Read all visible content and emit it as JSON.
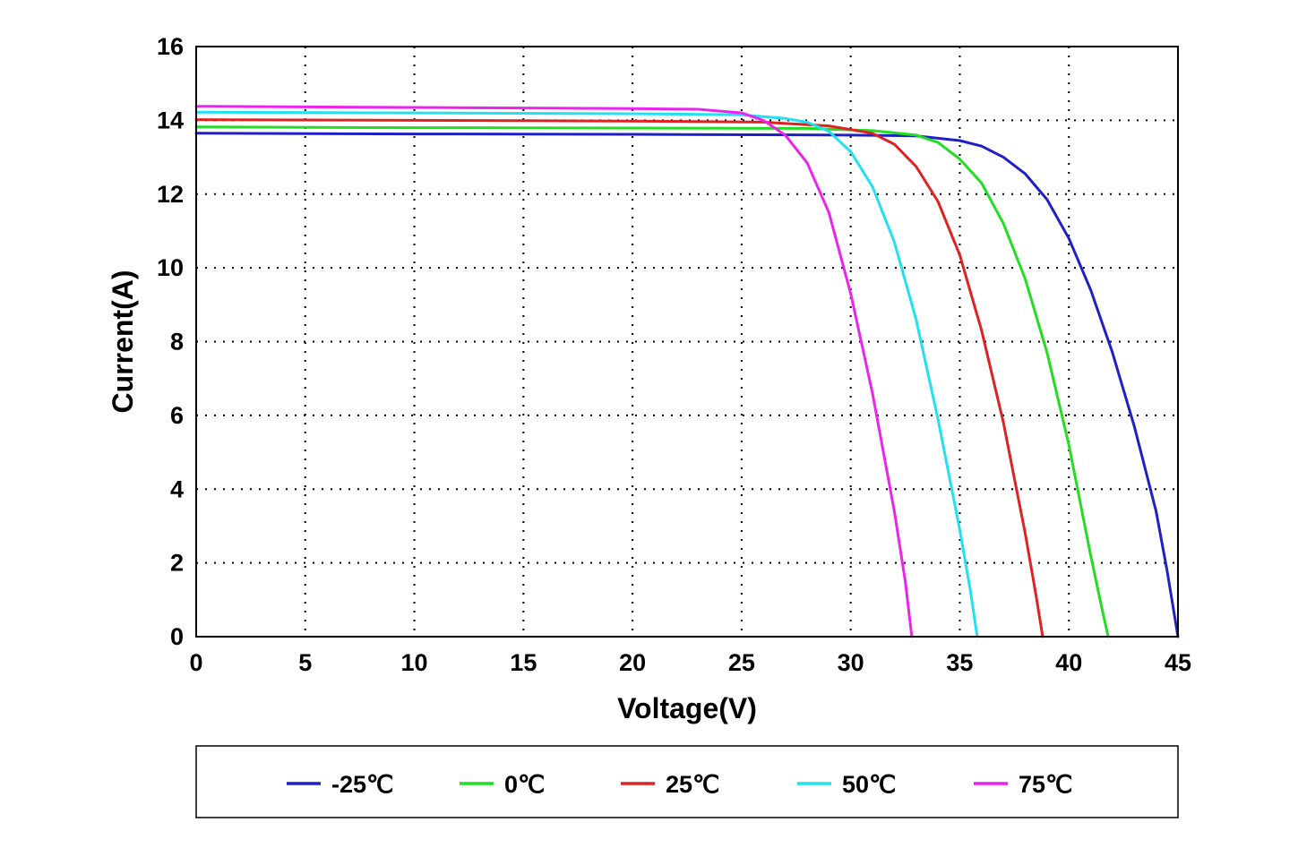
{
  "chart_data": {
    "type": "line",
    "title": "",
    "xlabel": "Voltage(V)",
    "ylabel": "Current(A)",
    "xlim": [
      0,
      45
    ],
    "ylim": [
      0,
      16
    ],
    "xticks": [
      "0",
      "5",
      "10",
      "15",
      "20",
      "25",
      "30",
      "35",
      "40",
      "45"
    ],
    "yticks": [
      "0",
      "2",
      "4",
      "6",
      "8",
      "10",
      "12",
      "14",
      "16"
    ],
    "grid": true,
    "legend_position": "bottom",
    "series": [
      {
        "name": "-25℃",
        "color": "#1f1fc8",
        "x": [
          0,
          10,
          20,
          30,
          33,
          35,
          36,
          37,
          38,
          39,
          40,
          41,
          42,
          43,
          44,
          44.5,
          45
        ],
        "y": [
          13.65,
          13.63,
          13.62,
          13.6,
          13.58,
          13.45,
          13.3,
          13.0,
          12.55,
          11.85,
          10.8,
          9.4,
          7.7,
          5.7,
          3.4,
          1.8,
          0
        ]
      },
      {
        "name": "0℃",
        "color": "#22dd22",
        "x": [
          0,
          10,
          20,
          28,
          31,
          33,
          34,
          35,
          36,
          37,
          38,
          39,
          40,
          40.5,
          41,
          41.5,
          41.8
        ],
        "y": [
          13.82,
          13.8,
          13.79,
          13.78,
          13.72,
          13.6,
          13.4,
          12.95,
          12.3,
          11.2,
          9.7,
          7.7,
          5.2,
          3.7,
          2.2,
          0.8,
          0
        ]
      },
      {
        "name": "25℃",
        "color": "#dd2222",
        "x": [
          0,
          10,
          20,
          26,
          29,
          31,
          32,
          33,
          34,
          35,
          36,
          37,
          37.5,
          38,
          38.5,
          38.8
        ],
        "y": [
          14.02,
          14.0,
          13.98,
          13.95,
          13.85,
          13.65,
          13.35,
          12.75,
          11.8,
          10.35,
          8.3,
          5.8,
          4.3,
          2.8,
          1.1,
          0
        ]
      },
      {
        "name": "50℃",
        "color": "#22e0f0",
        "x": [
          0,
          10,
          20,
          25,
          27,
          28,
          29,
          30,
          31,
          32,
          33,
          34,
          35,
          35.5,
          35.8
        ],
        "y": [
          14.22,
          14.2,
          14.18,
          14.15,
          14.05,
          13.95,
          13.7,
          13.15,
          12.2,
          10.7,
          8.6,
          5.9,
          2.9,
          1.2,
          0
        ]
      },
      {
        "name": "75℃",
        "color": "#ee22ee",
        "x": [
          0,
          10,
          20,
          23,
          25,
          26,
          27,
          28,
          29,
          30,
          31,
          32,
          32.5,
          32.8
        ],
        "y": [
          14.38,
          14.35,
          14.32,
          14.3,
          14.2,
          14.0,
          13.6,
          12.85,
          11.5,
          9.3,
          6.6,
          3.4,
          1.5,
          0
        ]
      }
    ]
  }
}
